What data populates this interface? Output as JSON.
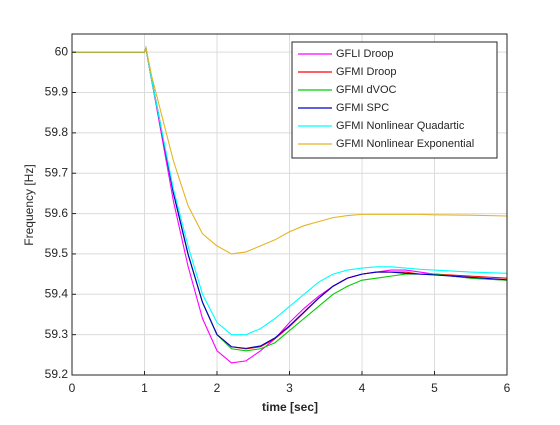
{
  "chart_data": {
    "type": "line",
    "xlabel": "time [sec]",
    "ylabel": "Frequency [Hz]",
    "x": [
      0,
      1,
      1.02,
      1.1,
      1.2,
      1.4,
      1.6,
      1.8,
      2,
      2.2,
      2.4,
      2.6,
      2.8,
      3,
      3.2,
      3.4,
      3.6,
      3.8,
      4,
      4.2,
      4.4,
      4.6,
      4.8,
      5,
      5.5,
      6
    ],
    "series": [
      {
        "name": "GFLI Droop",
        "color": "#ff00ff",
        "values": [
          60,
          60,
          60.01,
          59.93,
          59.83,
          59.63,
          59.47,
          59.34,
          59.26,
          59.23,
          59.235,
          59.26,
          59.29,
          59.33,
          59.365,
          59.395,
          59.42,
          59.44,
          59.45,
          59.455,
          59.46,
          59.46,
          59.455,
          59.45,
          59.44,
          59.435
        ]
      },
      {
        "name": "GFMI Droop",
        "color": "#ff0000",
        "values": [
          60,
          60,
          60.01,
          59.93,
          59.84,
          59.65,
          59.5,
          59.38,
          59.3,
          59.27,
          59.265,
          59.27,
          59.29,
          59.32,
          59.355,
          59.39,
          59.42,
          59.44,
          59.45,
          59.455,
          59.455,
          59.455,
          59.45,
          59.45,
          59.445,
          59.44
        ]
      },
      {
        "name": "GFMI dVOC",
        "color": "#00cc00",
        "values": [
          60,
          60,
          60.01,
          59.93,
          59.84,
          59.65,
          59.5,
          59.38,
          59.3,
          59.265,
          59.26,
          59.265,
          59.28,
          59.31,
          59.34,
          59.37,
          59.4,
          59.42,
          59.435,
          59.44,
          59.445,
          59.45,
          59.45,
          59.45,
          59.44,
          59.435
        ]
      },
      {
        "name": "GFMI SPC",
        "color": "#0000cc",
        "values": [
          60,
          60,
          60.01,
          59.93,
          59.84,
          59.65,
          59.5,
          59.38,
          59.3,
          59.27,
          59.266,
          59.272,
          59.292,
          59.322,
          59.356,
          59.39,
          59.42,
          59.44,
          59.45,
          59.455,
          59.455,
          59.452,
          59.45,
          59.448,
          59.442,
          59.436
        ]
      },
      {
        "name": "GFMI Nonlinear Quadartic",
        "color": "#00ffff",
        "values": [
          60,
          60,
          60.01,
          59.93,
          59.84,
          59.66,
          59.52,
          59.4,
          59.33,
          59.3,
          59.3,
          59.315,
          59.34,
          59.37,
          59.4,
          59.43,
          59.45,
          59.46,
          59.465,
          59.468,
          59.468,
          59.465,
          59.462,
          59.46,
          59.455,
          59.452
        ]
      },
      {
        "name": "GFMI Nonlinear Exponential",
        "color": "#e6b422",
        "values": [
          60,
          60,
          60.01,
          59.94,
          59.87,
          59.73,
          59.62,
          59.55,
          59.52,
          59.5,
          59.505,
          59.52,
          59.535,
          59.555,
          59.57,
          59.58,
          59.59,
          59.595,
          59.598,
          59.598,
          59.598,
          59.598,
          59.598,
          59.597,
          59.596,
          59.594
        ]
      }
    ],
    "xlim": [
      0,
      6
    ],
    "xticks": [
      0,
      1,
      2,
      3,
      4,
      5,
      6
    ],
    "ylim": [
      59.2,
      60.045
    ],
    "yticks": [
      59.2,
      59.3,
      59.4,
      59.5,
      59.6,
      59.7,
      59.8,
      59.9,
      60
    ],
    "grid": true,
    "legend": "top-right"
  }
}
